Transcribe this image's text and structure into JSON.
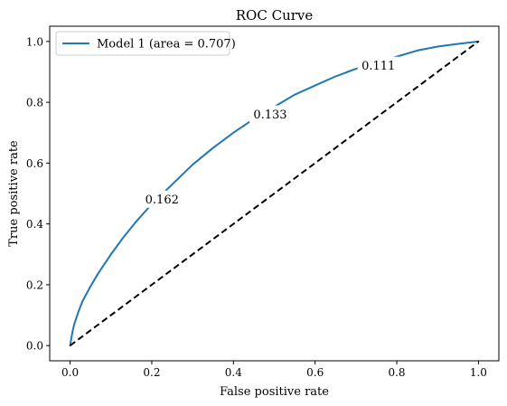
{
  "chart_data": {
    "type": "line",
    "title": "ROC Curve",
    "xlabel": "False positive rate",
    "ylabel": "True positive rate",
    "xlim": [
      -0.05,
      1.05
    ],
    "ylim": [
      -0.05,
      1.05
    ],
    "xticks": [
      0.0,
      0.2,
      0.4,
      0.6,
      0.8,
      1.0
    ],
    "yticks": [
      0.0,
      0.2,
      0.4,
      0.6,
      0.8,
      1.0
    ],
    "xtick_labels": [
      "0.0",
      "0.2",
      "0.4",
      "0.6",
      "0.8",
      "1.0"
    ],
    "ytick_labels": [
      "0.0",
      "0.2",
      "0.4",
      "0.6",
      "0.8",
      "1.0"
    ],
    "grid": false,
    "legend_position": "top-left",
    "series": [
      {
        "name": "Model 1 (area = 0.707)",
        "color": "#1f77b4",
        "style": "solid",
        "x": [
          0.0,
          0.005,
          0.01,
          0.02,
          0.03,
          0.05,
          0.07,
          0.1,
          0.13,
          0.16,
          0.2,
          0.25,
          0.3,
          0.35,
          0.4,
          0.45,
          0.5,
          0.55,
          0.6,
          0.65,
          0.7,
          0.75,
          0.8,
          0.85,
          0.9,
          0.95,
          1.0
        ],
        "y": [
          0.0,
          0.04,
          0.07,
          0.11,
          0.145,
          0.195,
          0.24,
          0.3,
          0.355,
          0.405,
          0.465,
          0.53,
          0.595,
          0.65,
          0.7,
          0.745,
          0.785,
          0.825,
          0.855,
          0.885,
          0.91,
          0.93,
          0.95,
          0.97,
          0.983,
          0.992,
          1.0
        ]
      },
      {
        "name": "",
        "color": "#000000",
        "style": "dashed",
        "x": [
          0.0,
          1.0
        ],
        "y": [
          0.0,
          1.0
        ]
      }
    ],
    "annotations": [
      {
        "text": "0.162",
        "x": 0.225,
        "y": 0.48
      },
      {
        "text": "0.133",
        "x": 0.49,
        "y": 0.76
      },
      {
        "text": "0.111",
        "x": 0.755,
        "y": 0.92
      }
    ]
  }
}
